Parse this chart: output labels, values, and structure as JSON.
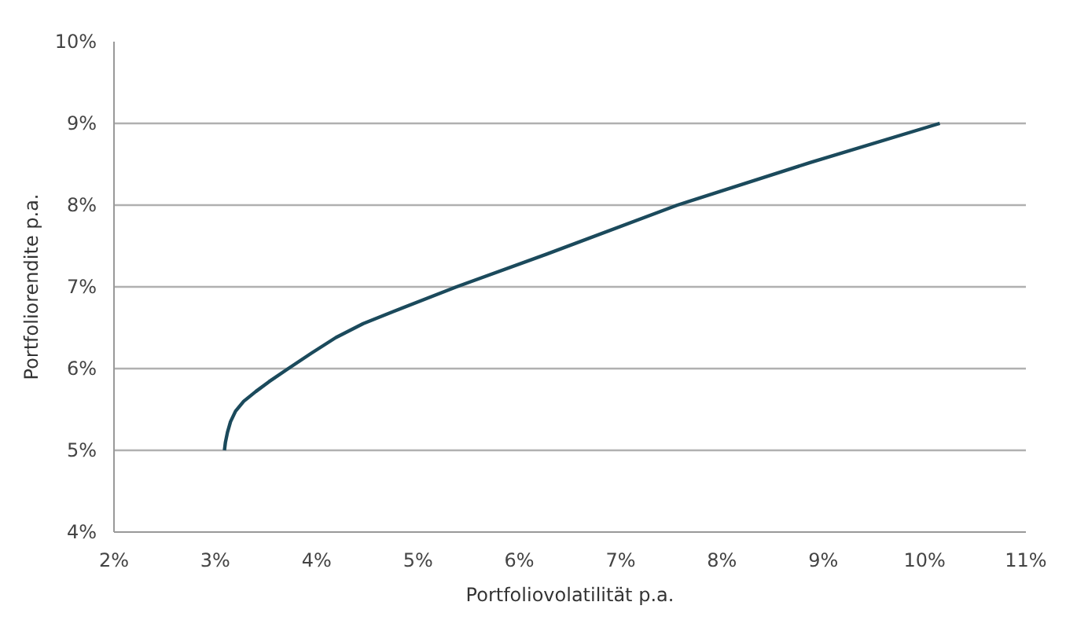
{
  "chart_data": {
    "type": "line",
    "xlabel": "Portfoliovolatilität p.a.",
    "ylabel": "Portfoliorendite p.a.",
    "x": [
      3.09,
      3.1,
      3.12,
      3.15,
      3.2,
      3.28,
      3.4,
      3.53,
      3.72,
      3.95,
      4.19,
      4.46,
      4.76,
      5.38,
      6.27,
      7.56,
      8.87,
      10.15
    ],
    "series": [
      {
        "color": "#1b4a5c",
        "values": [
          5.0,
          5.1,
          5.22,
          5.35,
          5.48,
          5.6,
          5.72,
          5.84,
          6.0,
          6.19,
          6.38,
          6.55,
          6.7,
          7.0,
          7.4,
          8.0,
          8.52,
          9.0
        ]
      }
    ],
    "xlim": [
      2,
      11
    ],
    "ylim": [
      4,
      10
    ],
    "xticks": [
      {
        "value": 2,
        "label": "2%"
      },
      {
        "value": 3,
        "label": "3%"
      },
      {
        "value": 4,
        "label": "4%"
      },
      {
        "value": 5,
        "label": "5%"
      },
      {
        "value": 6,
        "label": "6%"
      },
      {
        "value": 7,
        "label": "7%"
      },
      {
        "value": 8,
        "label": "8%"
      },
      {
        "value": 9,
        "label": "9%"
      },
      {
        "value": 10,
        "label": "10%"
      },
      {
        "value": 11,
        "label": "11%"
      }
    ],
    "yticks": [
      {
        "value": 4,
        "label": "4%"
      },
      {
        "value": 5,
        "label": "5%"
      },
      {
        "value": 6,
        "label": "6%"
      },
      {
        "value": 7,
        "label": "7%"
      },
      {
        "value": 8,
        "label": "8%"
      },
      {
        "value": 9,
        "label": "9%"
      },
      {
        "value": 10,
        "label": "10%"
      }
    ],
    "grid": "y",
    "marker": "none",
    "line_style": "solid"
  }
}
